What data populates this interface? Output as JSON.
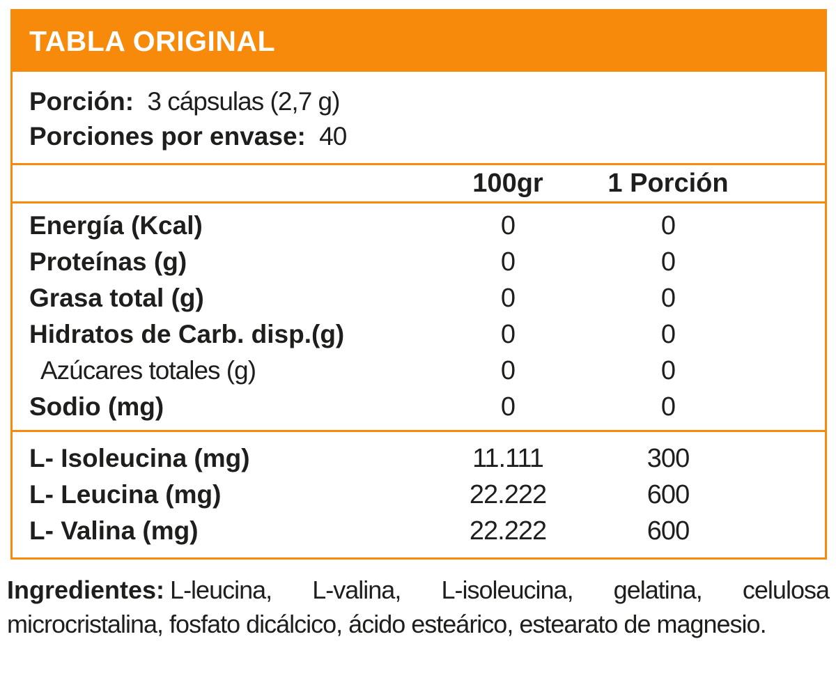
{
  "colors": {
    "accent": "#F7890B",
    "text": "#1E1E1C",
    "header_text": "#FFFFFF",
    "background": "#FFFFFF"
  },
  "header": {
    "title": "TABLA ORIGINAL"
  },
  "serving": {
    "portion_label": "Porción:",
    "portion_value": "3 cápsulas (2,7 g)",
    "servings_label": "Porciones por envase:",
    "servings_value": "40"
  },
  "columns": {
    "per100": "100gr",
    "per_serving": "1 Porción"
  },
  "nutrients": [
    {
      "label": "Energía (Kcal)",
      "per100": "0",
      "per_serving": "0"
    },
    {
      "label": "Proteínas (g)",
      "per100": "0",
      "per_serving": "0"
    },
    {
      "label": "Grasa total (g)",
      "per100": "0",
      "per_serving": "0"
    },
    {
      "label": "Hidratos de Carb. disp.(g)",
      "per100": "0",
      "per_serving": "0"
    },
    {
      "label": "Azúcares totales (g)",
      "per100": "0",
      "per_serving": "0"
    },
    {
      "label": "Sodio (mg)",
      "per100": "0",
      "per_serving": "0"
    }
  ],
  "amino_acids": [
    {
      "label": "L- Isoleucina (mg)",
      "per100": "11.111",
      "per_serving": "300"
    },
    {
      "label": "L- Leucina (mg)",
      "per100": "22.222",
      "per_serving": "600"
    },
    {
      "label": "L- Valina (mg)",
      "per100": "22.222",
      "per_serving": "600"
    }
  ],
  "ingredients": {
    "label": "Ingredientes:",
    "text": "L-leucina, L-valina, L-isoleucina, gelatina, celulosa microcristalina, fosfato dicálcico, ácido esteárico, estearato de magnesio."
  }
}
